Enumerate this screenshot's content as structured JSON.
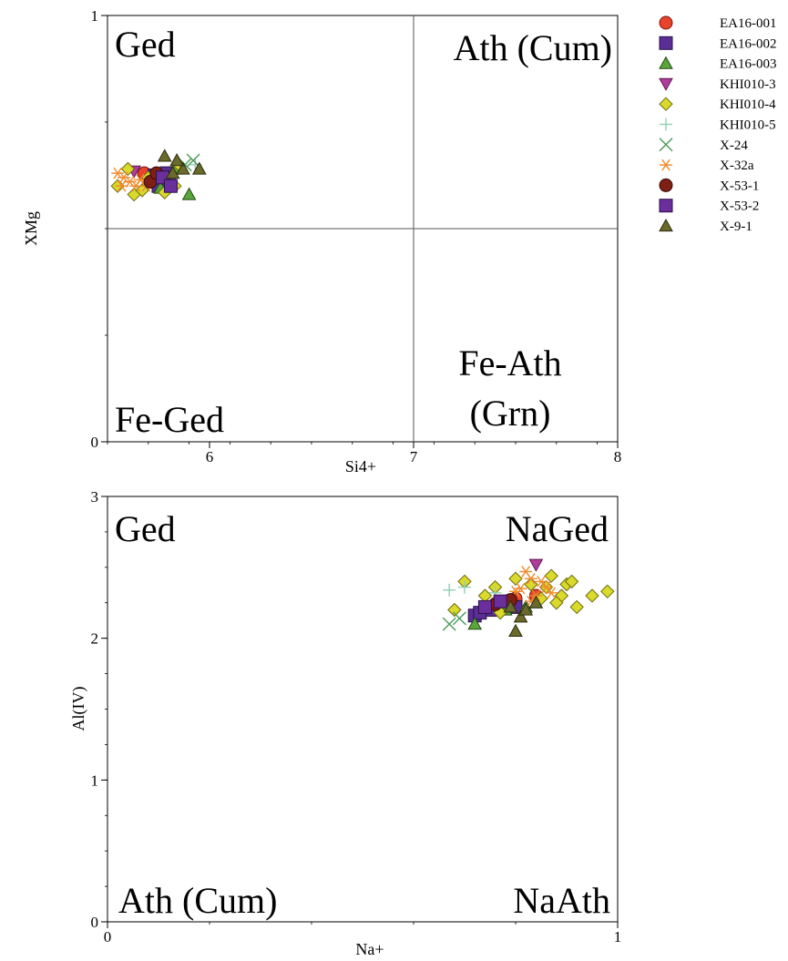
{
  "chart_data": [
    {
      "type": "scatter",
      "xlabel": "Si4+",
      "ylabel": "XMg",
      "xlim": [
        5.5,
        8
      ],
      "ylim": [
        0,
        1
      ],
      "x_ticks": [
        {
          "value": 6,
          "label": "6"
        },
        {
          "value": 7,
          "label": "7"
        },
        {
          "value": 8,
          "label": "8"
        }
      ],
      "y_ticks": [
        {
          "value": 0,
          "label": "0"
        },
        {
          "value": 1,
          "label": "1"
        }
      ],
      "divider_lines": {
        "x": 7,
        "y": 0.5
      },
      "field_labels": [
        {
          "text": "Ged",
          "position": "top-left"
        },
        {
          "text": "Ath (Cum)",
          "position": "top-right"
        },
        {
          "text": "Fe-Ged",
          "position": "bottom-left"
        },
        {
          "text": "Fe-Ath",
          "position": "bottom-right-upper"
        },
        {
          "text": "(Grn)",
          "position": "bottom-right-lower"
        }
      ],
      "series": [
        {
          "name": "EA16-001",
          "points": [
            [
              5.72,
              0.61
            ],
            [
              5.76,
              0.62
            ],
            [
              5.68,
              0.63
            ]
          ]
        },
        {
          "name": "EA16-002",
          "points": [
            [
              5.75,
              0.6
            ],
            [
              5.79,
              0.63
            ],
            [
              5.8,
              0.61
            ],
            [
              5.73,
              0.625
            ]
          ]
        },
        {
          "name": "EA16-003",
          "points": [
            [
              5.9,
              0.58
            ],
            [
              5.83,
              0.64
            ],
            [
              5.76,
              0.595
            ]
          ]
        },
        {
          "name": "KHI010-3",
          "points": [
            [
              5.63,
              0.635
            ]
          ]
        },
        {
          "name": "KHI010-4",
          "points": [
            [
              5.55,
              0.6
            ],
            [
              5.63,
              0.58
            ],
            [
              5.67,
              0.59
            ],
            [
              5.6,
              0.64
            ],
            [
              5.83,
              0.6
            ],
            [
              5.7,
              0.62
            ],
            [
              5.85,
              0.65
            ],
            [
              5.78,
              0.585
            ]
          ]
        },
        {
          "name": "KHI010-5",
          "points": [
            [
              5.93,
              0.65
            ],
            [
              5.82,
              0.62
            ]
          ]
        },
        {
          "name": "X-24",
          "points": [
            [
              5.88,
              0.65
            ],
            [
              5.92,
              0.66
            ]
          ]
        },
        {
          "name": "X-32a",
          "points": [
            [
              5.55,
              0.63
            ],
            [
              5.58,
              0.62
            ],
            [
              5.61,
              0.61
            ],
            [
              5.64,
              0.6
            ],
            [
              5.57,
              0.6
            ],
            [
              5.66,
              0.615
            ],
            [
              5.69,
              0.6
            ]
          ]
        },
        {
          "name": "X-53-1",
          "points": [
            [
              5.71,
              0.61
            ],
            [
              5.74,
              0.63
            ]
          ]
        },
        {
          "name": "X-53-2",
          "points": [
            [
              5.77,
              0.62
            ],
            [
              5.81,
              0.6
            ]
          ]
        },
        {
          "name": "X-9-1",
          "points": [
            [
              5.78,
              0.67
            ],
            [
              5.87,
              0.64
            ],
            [
              5.95,
              0.64
            ],
            [
              5.82,
              0.63
            ],
            [
              5.84,
              0.66
            ]
          ]
        }
      ]
    },
    {
      "type": "scatter",
      "xlabel": "Na+",
      "ylabel": "Al(IV)",
      "xlim": [
        0,
        1
      ],
      "ylim": [
        0,
        3
      ],
      "x_ticks": [
        {
          "value": 0,
          "label": "0"
        },
        {
          "value": 1,
          "label": "1"
        }
      ],
      "y_ticks": [
        {
          "value": 0,
          "label": "0"
        },
        {
          "value": 1,
          "label": "1"
        },
        {
          "value": 2,
          "label": "2"
        },
        {
          "value": 3,
          "label": "3"
        }
      ],
      "field_labels": [
        {
          "text": "Ged",
          "position": "top-left"
        },
        {
          "text": "NaGed",
          "position": "top-right"
        },
        {
          "text": "Ath (Cum)",
          "position": "bottom-left"
        },
        {
          "text": "NaAth",
          "position": "bottom-right"
        }
      ],
      "series": [
        {
          "name": "EA16-001",
          "points": [
            [
              0.8,
              2.28
            ],
            [
              0.84,
              2.3
            ],
            [
              0.78,
              2.26
            ]
          ]
        },
        {
          "name": "EA16-002",
          "points": [
            [
              0.72,
              2.16
            ],
            [
              0.75,
              2.2
            ],
            [
              0.78,
              2.24
            ],
            [
              0.8,
              2.22
            ],
            [
              0.73,
              2.18
            ]
          ]
        },
        {
          "name": "EA16-003",
          "points": [
            [
              0.72,
              2.1
            ],
            [
              0.78,
              2.2
            ],
            [
              0.82,
              2.22
            ]
          ]
        },
        {
          "name": "KHI010-3",
          "points": [
            [
              0.84,
              2.52
            ]
          ]
        },
        {
          "name": "KHI010-4",
          "points": [
            [
              0.7,
              2.4
            ],
            [
              0.74,
              2.3
            ],
            [
              0.77,
              2.18
            ],
            [
              0.8,
              2.42
            ],
            [
              0.83,
              2.38
            ],
            [
              0.85,
              2.28
            ],
            [
              0.87,
              2.44
            ],
            [
              0.89,
              2.3
            ],
            [
              0.9,
              2.38
            ],
            [
              0.92,
              2.22
            ],
            [
              0.95,
              2.3
            ],
            [
              0.98,
              2.33
            ],
            [
              0.86,
              2.36
            ],
            [
              0.88,
              2.25
            ],
            [
              0.91,
              2.4
            ],
            [
              0.76,
              2.36
            ],
            [
              0.68,
              2.2
            ]
          ]
        },
        {
          "name": "KHI010-5",
          "points": [
            [
              0.67,
              2.34
            ],
            [
              0.7,
              2.36
            ],
            [
              0.76,
              2.32
            ]
          ]
        },
        {
          "name": "X-24",
          "points": [
            [
              0.67,
              2.1
            ],
            [
              0.69,
              2.14
            ]
          ]
        },
        {
          "name": "X-32a",
          "points": [
            [
              0.81,
              2.35
            ],
            [
              0.83,
              2.42
            ],
            [
              0.84,
              2.3
            ],
            [
              0.86,
              2.36
            ],
            [
              0.82,
              2.47
            ],
            [
              0.85,
              2.4
            ],
            [
              0.87,
              2.32
            ],
            [
              0.8,
              2.33
            ],
            [
              0.83,
              2.26
            ]
          ]
        },
        {
          "name": "X-53-1",
          "points": [
            [
              0.79,
              2.27
            ],
            [
              0.76,
              2.24
            ]
          ]
        },
        {
          "name": "X-53-2",
          "points": [
            [
              0.74,
              2.22
            ],
            [
              0.77,
              2.26
            ]
          ]
        },
        {
          "name": "X-9-1",
          "points": [
            [
              0.8,
              2.05
            ],
            [
              0.81,
              2.15
            ],
            [
              0.82,
              2.2
            ],
            [
              0.79,
              2.22
            ],
            [
              0.84,
              2.25
            ]
          ]
        }
      ]
    }
  ],
  "legend": [
    {
      "name": "EA16-001",
      "marker": "circle",
      "fill": "#e8432b",
      "stroke": "#7a1a0f"
    },
    {
      "name": "EA16-002",
      "marker": "square",
      "fill": "#5b2e95",
      "stroke": "#2a1148"
    },
    {
      "name": "EA16-003",
      "marker": "triangle-up",
      "fill": "#5aa63a",
      "stroke": "#234a16"
    },
    {
      "name": "KHI010-3",
      "marker": "triangle-down",
      "fill": "#b03d9c",
      "stroke": "#5a1a50"
    },
    {
      "name": "KHI010-4",
      "marker": "diamond",
      "fill": "#d9da2c",
      "stroke": "#6e6b0c"
    },
    {
      "name": "KHI010-5",
      "marker": "plus",
      "fill": "none",
      "stroke": "#8fd0b4"
    },
    {
      "name": "X-24",
      "marker": "cross",
      "fill": "none",
      "stroke": "#4c9a58"
    },
    {
      "name": "X-32a",
      "marker": "asterisk",
      "fill": "none",
      "stroke": "#f08a2c"
    },
    {
      "name": "X-53-1",
      "marker": "circle",
      "fill": "#7e1f14",
      "stroke": "#3a0b06"
    },
    {
      "name": "X-53-2",
      "marker": "square",
      "fill": "#6a2f9c",
      "stroke": "#2e0f4a"
    },
    {
      "name": "X-9-1",
      "marker": "triangle-up",
      "fill": "#6a6a2c",
      "stroke": "#2b2b0e"
    }
  ]
}
